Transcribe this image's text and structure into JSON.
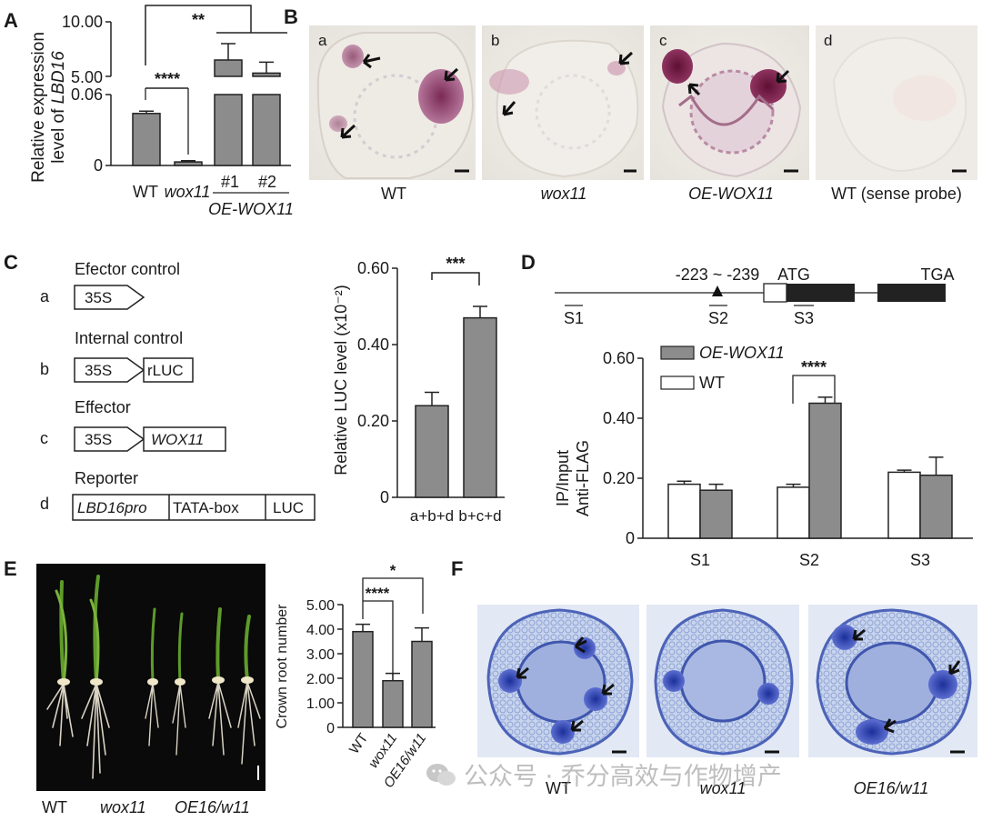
{
  "panels": {
    "a": {
      "letter": "A",
      "ylabel_line1": "Relative expression",
      "ylabel_line2_prefix": "level of ",
      "ylabel_line2_gene": "LBD16",
      "ticks_upper": [
        "10.00",
        "5.00"
      ],
      "ticks_lower": [
        "0.06",
        "0"
      ],
      "sig_wt_wox11": "****",
      "sig_wt_oe": "**",
      "xlabels": [
        "WT",
        "wox11",
        "#1",
        "#2"
      ],
      "group_label": "OE-WOX11"
    },
    "b": {
      "letter": "B",
      "sublabels": [
        "a",
        "b",
        "c",
        "d"
      ],
      "captions": [
        "WT",
        "wox11",
        "OE-WOX11",
        "WT (sense probe)"
      ]
    },
    "c": {
      "letter": "C",
      "constructs": [
        {
          "row": "a",
          "title": "Efector control",
          "promoter": "35S"
        },
        {
          "row": "b",
          "title": "Internal control",
          "promoter": "35S",
          "gene": "rLUC"
        },
        {
          "row": "c",
          "title": "Effector",
          "promoter": "35S",
          "gene": "WOX11"
        },
        {
          "row": "d",
          "title": "Reporter",
          "parts": [
            "LBD16pro",
            "TATA-box",
            "LUC"
          ]
        }
      ],
      "ylabel": "Relative LUC level (x10⁻²)",
      "ticks": [
        "0.60",
        "0.40",
        "0.20",
        "0"
      ],
      "xlabels": [
        "a+b+d",
        "b+c+d"
      ],
      "sig": "***"
    },
    "d": {
      "letter": "D",
      "gene_pos": "-223 ~ -239",
      "atg": "ATG",
      "tga": "TGA",
      "sites": [
        "S1",
        "S2",
        "S3"
      ],
      "legend": [
        "OE-WOX11",
        "WT"
      ],
      "ylabel_line1": "IP/Input",
      "ylabel_line2": "Anti-FLAG",
      "ticks": [
        "0.60",
        "0.40",
        "0.20",
        "0"
      ],
      "xlabels": [
        "S1",
        "S2",
        "S3"
      ],
      "sig": "****"
    },
    "e": {
      "letter": "E",
      "photo_labels": [
        "WT",
        "wox11",
        "OE16/w11"
      ],
      "ylabel": "Crown root number",
      "ticks": [
        "5.00",
        "4.00",
        "3.00",
        "2.00",
        "1.00",
        "0"
      ],
      "xlabels": [
        "WT",
        "wox11",
        "OE16/w11"
      ],
      "sig_wt_oe": "*",
      "sig_wt_wox11": "****"
    },
    "f": {
      "letter": "F",
      "captions": [
        "WT",
        "wox11",
        "OE16/w11"
      ],
      "watermark": "公众号 · 乔分高效与作物增产"
    }
  },
  "chart_data": [
    {
      "type": "bar",
      "panel": "A",
      "categories": [
        "WT",
        "wox11",
        "#1",
        "#2"
      ],
      "values": [
        0.044,
        0.003,
        6.5,
        5.3
      ],
      "errors": [
        0.002,
        0.001,
        1.5,
        1.0
      ],
      "ylim": [
        0,
        10
      ],
      "axis_break": [
        0.06,
        5.0
      ],
      "ylabel": "Relative expression level of LBD16",
      "colors": [
        "#8c8c8c"
      ]
    },
    {
      "type": "bar",
      "panel": "C",
      "categories": [
        "a+b+d",
        "b+c+d"
      ],
      "values": [
        0.24,
        0.47
      ],
      "errors": [
        0.035,
        0.03
      ],
      "ylim": [
        0,
        0.6
      ],
      "ylabel": "Relative LUC level (x10⁻²)",
      "colors": [
        "#8c8c8c"
      ]
    },
    {
      "type": "bar",
      "panel": "D",
      "categories": [
        "S1",
        "S2",
        "S3"
      ],
      "series": [
        {
          "name": "WT",
          "values": [
            0.18,
            0.17,
            0.22
          ],
          "errors": [
            0.01,
            0.01,
            0.007
          ],
          "color": "#ffffff"
        },
        {
          "name": "OE-WOX11",
          "values": [
            0.16,
            0.45,
            0.21
          ],
          "errors": [
            0.02,
            0.02,
            0.06
          ],
          "color": "#8c8c8c"
        }
      ],
      "ylim": [
        0,
        0.6
      ],
      "ylabel": "IP/Input Anti-FLAG"
    },
    {
      "type": "bar",
      "panel": "E",
      "categories": [
        "WT",
        "wox11",
        "OE16/w11"
      ],
      "values": [
        3.9,
        1.9,
        3.5
      ],
      "errors": [
        0.3,
        0.3,
        0.55
      ],
      "ylim": [
        0,
        5
      ],
      "ylabel": "Crown root number",
      "colors": [
        "#8c8c8c"
      ]
    }
  ]
}
